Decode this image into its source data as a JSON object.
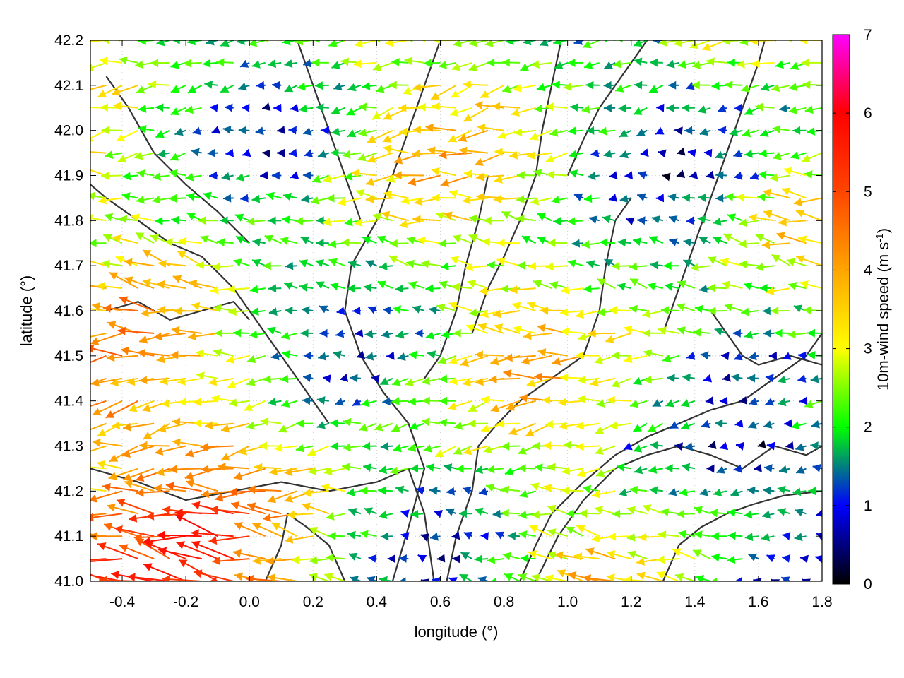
{
  "chart_data": {
    "type": "quiver",
    "xlabel": "longitude (°)",
    "ylabel": "latitude (°)",
    "colorbar_label_main": "10m-wind speed (m s",
    "colorbar_label_sup": "-1",
    "colorbar_label_close": ")",
    "xlim": [
      -0.5,
      1.8
    ],
    "ylim": [
      41.0,
      42.2
    ],
    "x_ticks": [
      {
        "value": -0.4,
        "label": "-0.4"
      },
      {
        "value": -0.2,
        "label": "-0.2"
      },
      {
        "value": 0.0,
        "label": "0.0"
      },
      {
        "value": 0.2,
        "label": "0.2"
      },
      {
        "value": 0.4,
        "label": "0.4"
      },
      {
        "value": 0.6,
        "label": "0.6"
      },
      {
        "value": 0.8,
        "label": "0.8"
      },
      {
        "value": 1.0,
        "label": "1.0"
      },
      {
        "value": 1.2,
        "label": "1.2"
      },
      {
        "value": 1.4,
        "label": "1.4"
      },
      {
        "value": 1.6,
        "label": "1.6"
      },
      {
        "value": 1.8,
        "label": "1.8"
      }
    ],
    "y_ticks": [
      {
        "value": 41.0,
        "label": "41.0"
      },
      {
        "value": 41.1,
        "label": "41.1"
      },
      {
        "value": 41.2,
        "label": "41.2"
      },
      {
        "value": 41.3,
        "label": "41.3"
      },
      {
        "value": 41.4,
        "label": "41.4"
      },
      {
        "value": 41.5,
        "label": "41.5"
      },
      {
        "value": 41.6,
        "label": "41.6"
      },
      {
        "value": 41.7,
        "label": "41.7"
      },
      {
        "value": 41.8,
        "label": "41.8"
      },
      {
        "value": 41.9,
        "label": "41.9"
      },
      {
        "value": 42.0,
        "label": "42.0"
      },
      {
        "value": 42.1,
        "label": "42.1"
      },
      {
        "value": 42.2,
        "label": "42.2"
      }
    ],
    "colorbar": {
      "range": [
        0,
        7
      ],
      "ticks": [
        {
          "value": 0,
          "label": "0"
        },
        {
          "value": 1,
          "label": "1"
        },
        {
          "value": 2,
          "label": "2"
        },
        {
          "value": 3,
          "label": "3"
        },
        {
          "value": 4,
          "label": "4"
        },
        {
          "value": 5,
          "label": "5"
        },
        {
          "value": 6,
          "label": "6"
        },
        {
          "value": 7,
          "label": "7"
        }
      ],
      "stops": [
        {
          "value": 0,
          "color": "#000000"
        },
        {
          "value": 1,
          "color": "#0000ff"
        },
        {
          "value": 2,
          "color": "#00ff00"
        },
        {
          "value": 3,
          "color": "#ffff00"
        },
        {
          "value": 4,
          "color": "#ffa500"
        },
        {
          "value": 5,
          "color": "#ff4500"
        },
        {
          "value": 6,
          "color": "#ff0000"
        },
        {
          "value": 7,
          "color": "#ff00ff"
        }
      ]
    },
    "grid": true,
    "vector_field": {
      "lon_start": -0.5,
      "lon_step": 0.05,
      "lat_start": 41.0,
      "lat_step": 0.05,
      "direction": "mostly from east (westward flow)",
      "speed_notes": "strongest (5-7 m/s) in the south-west quadrant, weakest (0-2 m/s) in the north-east and south-east"
    },
    "contours": [
      [
        [
          -0.5,
          41.25
        ],
        [
          -0.35,
          41.22
        ],
        [
          -0.2,
          41.18
        ],
        [
          -0.05,
          41.2
        ],
        [
          0.1,
          41.22
        ],
        [
          0.25,
          41.2
        ],
        [
          0.4,
          41.22
        ],
        [
          0.5,
          41.25
        ],
        [
          0.55,
          41.15
        ],
        [
          0.58,
          41.0
        ]
      ],
      [
        [
          0.45,
          41.0
        ],
        [
          0.5,
          41.12
        ],
        [
          0.55,
          41.25
        ],
        [
          0.5,
          41.35
        ],
        [
          0.42,
          41.42
        ],
        [
          0.35,
          41.5
        ],
        [
          0.3,
          41.6
        ],
        [
          0.32,
          41.7
        ],
        [
          0.4,
          41.8
        ],
        [
          0.45,
          41.9
        ],
        [
          0.5,
          42.0
        ],
        [
          0.55,
          42.1
        ],
        [
          0.6,
          42.2
        ]
      ],
      [
        [
          0.62,
          41.0
        ],
        [
          0.65,
          41.1
        ],
        [
          0.7,
          41.2
        ],
        [
          0.72,
          41.3
        ],
        [
          0.78,
          41.35
        ],
        [
          0.85,
          41.4
        ],
        [
          0.95,
          41.45
        ],
        [
          1.05,
          41.5
        ],
        [
          1.1,
          41.6
        ],
        [
          1.12,
          41.7
        ],
        [
          1.15,
          41.8
        ],
        [
          1.2,
          41.85
        ]
      ],
      [
        [
          0.85,
          41.0
        ],
        [
          0.9,
          41.08
        ],
        [
          0.95,
          41.15
        ],
        [
          1.05,
          41.22
        ],
        [
          1.15,
          41.28
        ],
        [
          1.25,
          41.32
        ],
        [
          1.35,
          41.35
        ],
        [
          1.45,
          41.38
        ],
        [
          1.55,
          41.4
        ],
        [
          1.65,
          41.45
        ],
        [
          1.75,
          41.5
        ],
        [
          1.8,
          41.55
        ]
      ],
      [
        [
          0.9,
          41.0
        ],
        [
          0.97,
          41.1
        ],
        [
          1.05,
          41.18
        ],
        [
          1.15,
          41.25
        ],
        [
          1.25,
          41.28
        ],
        [
          1.35,
          41.3
        ],
        [
          1.45,
          41.28
        ],
        [
          1.55,
          41.25
        ],
        [
          1.65,
          41.3
        ],
        [
          1.75,
          41.28
        ],
        [
          1.8,
          41.3
        ]
      ],
      [
        [
          1.3,
          41.0
        ],
        [
          1.35,
          41.08
        ],
        [
          1.42,
          41.12
        ],
        [
          1.5,
          41.15
        ],
        [
          1.58,
          41.17
        ],
        [
          1.68,
          41.19
        ],
        [
          1.8,
          41.2
        ]
      ],
      [
        [
          0.25,
          41.35
        ],
        [
          0.15,
          41.45
        ],
        [
          0.05,
          41.55
        ],
        [
          -0.05,
          41.65
        ],
        [
          -0.15,
          41.72
        ],
        [
          -0.25,
          41.75
        ],
        [
          -0.35,
          41.8
        ],
        [
          -0.45,
          41.85
        ],
        [
          -0.5,
          41.88
        ]
      ],
      [
        [
          0.0,
          41.75
        ],
        [
          -0.1,
          41.82
        ],
        [
          -0.2,
          41.88
        ],
        [
          -0.3,
          41.95
        ],
        [
          -0.38,
          42.05
        ],
        [
          -0.45,
          42.12
        ]
      ],
      [
        [
          0.35,
          41.8
        ],
        [
          0.3,
          41.9
        ],
        [
          0.25,
          42.0
        ],
        [
          0.2,
          42.1
        ],
        [
          0.15,
          42.2
        ]
      ],
      [
        [
          0.7,
          41.55
        ],
        [
          0.75,
          41.65
        ],
        [
          0.8,
          41.72
        ],
        [
          0.85,
          41.8
        ],
        [
          0.9,
          41.9
        ],
        [
          0.92,
          42.0
        ],
        [
          0.95,
          42.1
        ],
        [
          0.98,
          42.2
        ]
      ],
      [
        [
          1.3,
          41.55
        ],
        [
          1.35,
          41.65
        ],
        [
          1.4,
          41.75
        ],
        [
          1.45,
          41.85
        ],
        [
          1.5,
          41.95
        ],
        [
          1.55,
          42.05
        ],
        [
          1.6,
          42.15
        ],
        [
          1.62,
          42.2
        ]
      ],
      [
        [
          1.0,
          41.9
        ],
        [
          1.05,
          41.98
        ],
        [
          1.1,
          42.05
        ],
        [
          1.15,
          42.1
        ],
        [
          1.2,
          42.15
        ],
        [
          1.25,
          42.2
        ]
      ],
      [
        [
          -0.45,
          41.6
        ],
        [
          -0.35,
          41.62
        ],
        [
          -0.25,
          41.58
        ],
        [
          -0.15,
          41.6
        ],
        [
          -0.05,
          41.62
        ],
        [
          0.0,
          41.58
        ]
      ],
      [
        [
          0.55,
          41.45
        ],
        [
          0.6,
          41.5
        ],
        [
          0.65,
          41.6
        ],
        [
          0.68,
          41.7
        ],
        [
          0.72,
          41.8
        ],
        [
          0.75,
          41.9
        ]
      ],
      [
        [
          1.45,
          41.6
        ],
        [
          1.5,
          41.55
        ],
        [
          1.55,
          41.5
        ],
        [
          1.6,
          41.48
        ],
        [
          1.7,
          41.5
        ],
        [
          1.8,
          41.48
        ]
      ],
      [
        [
          0.05,
          41.0
        ],
        [
          0.1,
          41.08
        ],
        [
          0.12,
          41.15
        ],
        [
          0.18,
          41.12
        ],
        [
          0.25,
          41.08
        ],
        [
          0.3,
          41.0
        ]
      ]
    ]
  }
}
